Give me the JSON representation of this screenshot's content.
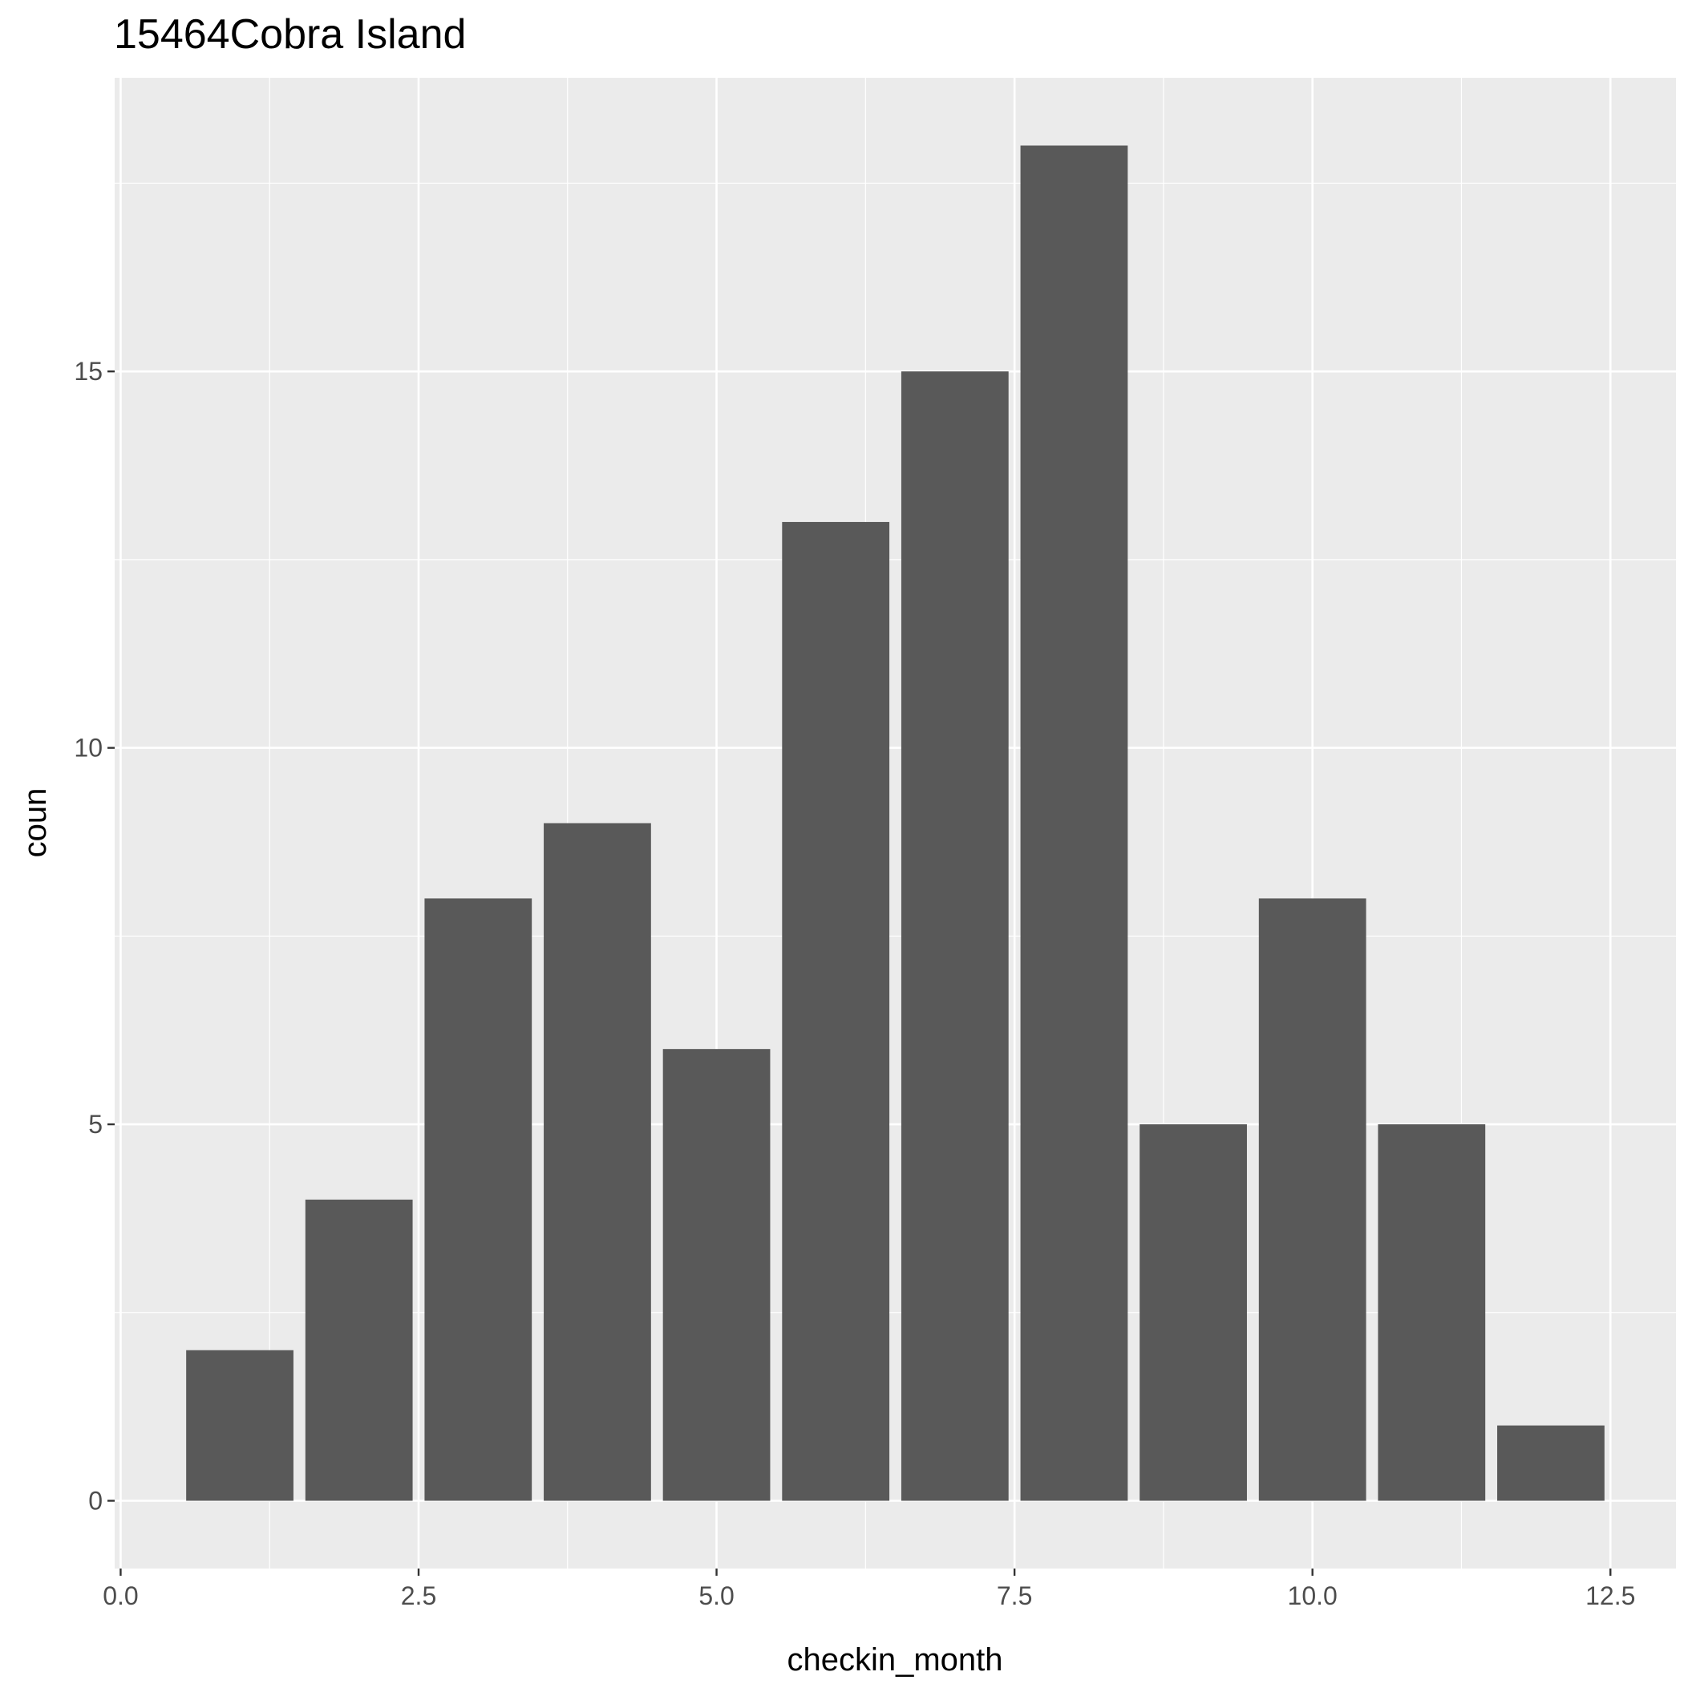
{
  "chart_data": {
    "type": "bar",
    "title": "15464Cobra Island",
    "xlabel": "checkin_month",
    "ylabel": "coun",
    "x": [
      1,
      2,
      3,
      4,
      5,
      6,
      7,
      8,
      9,
      10,
      11,
      12
    ],
    "values": [
      2,
      4,
      8,
      9,
      6,
      13,
      15,
      18,
      5,
      8,
      5,
      1
    ],
    "xlim": [
      -0.05,
      13.05
    ],
    "ylim": [
      -0.9,
      18.9
    ],
    "x_ticks": [
      "0.0",
      "2.5",
      "5.0",
      "7.5",
      "10.0",
      "12.5"
    ],
    "y_ticks": [
      "0",
      "5",
      "10",
      "15"
    ],
    "grid": true,
    "bar_color": "#595959",
    "panel_color": "#ebebeb"
  }
}
